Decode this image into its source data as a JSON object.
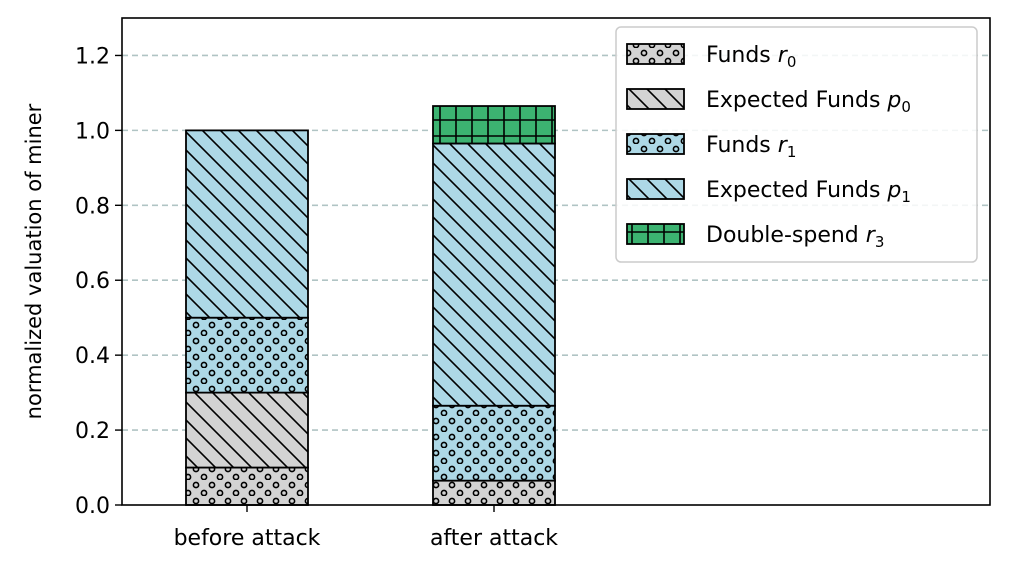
{
  "chart_data": {
    "type": "bar",
    "stacked": true,
    "categories": [
      "before attack",
      "after attack"
    ],
    "series": [
      {
        "name": "Funds",
        "sym": "r",
        "sub": "0",
        "values": [
          0.1,
          0.065
        ],
        "color": "#d3d3d3",
        "hatch": "circles"
      },
      {
        "name": "Expected Funds",
        "sym": "p",
        "sub": "0",
        "values": [
          0.2,
          0.0
        ],
        "color": "#d3d3d3",
        "hatch": "diagonal"
      },
      {
        "name": "Funds",
        "sym": "r",
        "sub": "1",
        "values": [
          0.2,
          0.2
        ],
        "color": "#add8e6",
        "hatch": "circles"
      },
      {
        "name": "Expected Funds",
        "sym": "p",
        "sub": "1",
        "values": [
          0.5,
          0.7
        ],
        "color": "#add8e6",
        "hatch": "diagonal"
      },
      {
        "name": "Double-spend",
        "sym": "r",
        "sub": "3",
        "values": [
          0.0,
          0.1
        ],
        "color": "#3cb371",
        "hatch": "grid"
      }
    ],
    "ylabel": "normalized valuation of miner",
    "xlabel": "",
    "ylim": [
      0,
      1.3
    ],
    "yticks": [
      "0.0",
      "0.2",
      "0.4",
      "0.6",
      "0.8",
      "1.0",
      "1.2"
    ],
    "grid": "horizontal dashed",
    "legend_position": "top-right"
  }
}
